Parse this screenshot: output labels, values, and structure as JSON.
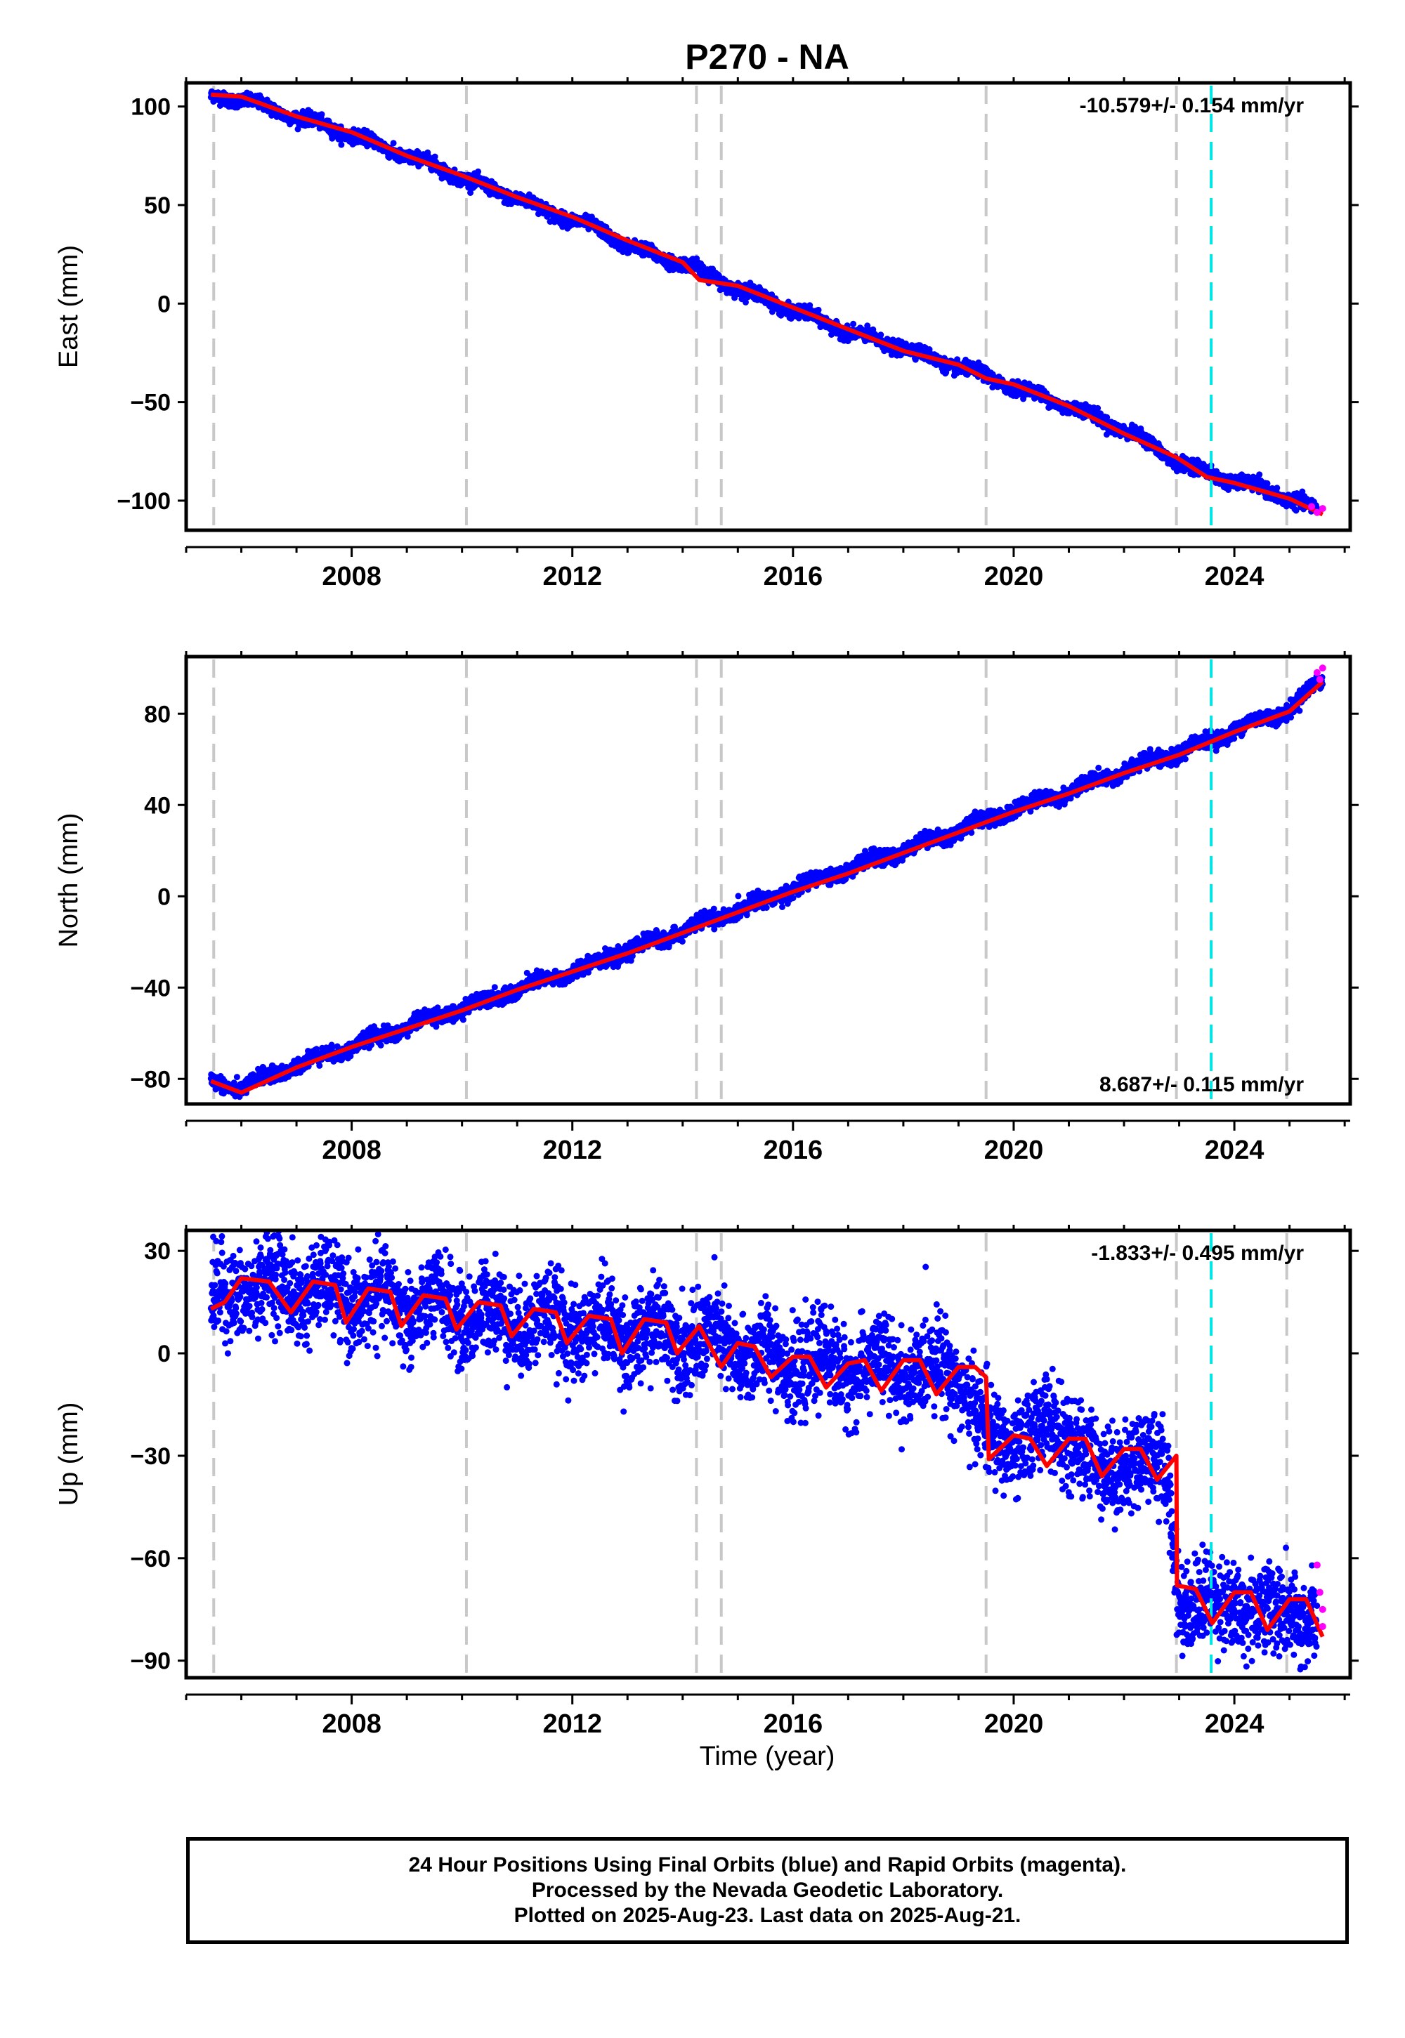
{
  "title": "P270 - NA",
  "colors": {
    "final_orbits": "#0000ff",
    "rapid_orbits": "#ff00ff",
    "model": "#ff0000",
    "event_line": "#c8c8c8",
    "highlight_line": "#00e5e5"
  },
  "xlabel": "Time (year)",
  "footer": {
    "line1": "24 Hour Positions Using Final Orbits (blue) and Rapid Orbits (magenta).",
    "line2": "Processed by the Nevada Geodetic Laboratory.",
    "line3": "Plotted on 2025-Aug-23. Last data on 2025-Aug-21."
  },
  "chart_data": [
    {
      "type": "scatter",
      "title": "P270 - NA",
      "ylabel": "East (mm)",
      "xlabel": "",
      "xlim": [
        2005.0,
        2026.1
      ],
      "xticks": [
        2008,
        2012,
        2016,
        2020,
        2024
      ],
      "ylim": [
        -115,
        112
      ],
      "yticks": [
        100,
        50,
        0,
        -50,
        -100
      ],
      "rate_label": "-10.579+/- 0.154 mm/yr",
      "rate_position": "top-right",
      "event_lines": [
        2005.5,
        2010.08,
        2014.25,
        2014.7,
        2019.5,
        2022.95,
        2024.95
      ],
      "highlight_lines": [
        2023.58
      ],
      "series": [
        {
          "x": [
            2005.45,
            2005.5,
            2006.0,
            2006.5,
            2007.0,
            2007.5,
            2008.0,
            2008.5,
            2009.0,
            2009.5,
            2010.0,
            2010.5,
            2011.0,
            2011.5,
            2012.0,
            2012.5,
            2013.0,
            2013.5,
            2014.0,
            2014.5,
            2015.0,
            2015.5,
            2016.0,
            2016.5,
            2017.0,
            2017.5,
            2018.0,
            2018.5,
            2019.0,
            2019.5,
            2020.0,
            2020.5,
            2021.0,
            2021.5,
            2022.0,
            2022.5,
            2022.95,
            2023.5,
            2024.0,
            2024.5,
            2025.0,
            2025.5
          ],
          "values": [
            104,
            105,
            104,
            99,
            95,
            90,
            86,
            80,
            75,
            70,
            64,
            58,
            54,
            47,
            43,
            37,
            30,
            24,
            21,
            14,
            8,
            2,
            -3,
            -9,
            -14,
            -19,
            -22,
            -28,
            -32,
            -37,
            -42,
            -47,
            -52,
            -58,
            -64,
            -72,
            -80,
            -86,
            -90,
            -94,
            -99,
            -105
          ]
        },
        {
          "name": "model",
          "x": [
            2005.45,
            2006.0,
            2007.0,
            2008.0,
            2009.0,
            2010.0,
            2011.0,
            2012.0,
            2013.0,
            2014.0,
            2014.3,
            2015.0,
            2016.0,
            2017.0,
            2018.0,
            2019.0,
            2019.5,
            2020.0,
            2021.0,
            2022.0,
            2022.95,
            2023.5,
            2024.0,
            2025.0,
            2025.6
          ],
          "values": [
            106,
            105,
            95,
            87,
            75,
            65,
            54,
            44,
            32,
            21,
            12,
            9,
            -2,
            -13,
            -24,
            -31,
            -38,
            -41,
            -52,
            -66,
            -78,
            -88,
            -91,
            -99,
            -107
          ]
        },
        {
          "name": "rapid",
          "x": [
            2025.4,
            2025.5,
            2025.6
          ],
          "values": [
            -103,
            -106,
            -104
          ]
        }
      ]
    },
    {
      "type": "scatter",
      "ylabel": "North (mm)",
      "xlabel": "",
      "xlim": [
        2005.0,
        2026.1
      ],
      "xticks": [
        2008,
        2012,
        2016,
        2020,
        2024
      ],
      "ylim": [
        -91,
        105
      ],
      "yticks": [
        80,
        40,
        0,
        -40,
        -80
      ],
      "rate_label": "8.687+/- 0.115 mm/yr",
      "rate_position": "bottom-right",
      "event_lines": [
        2005.5,
        2010.08,
        2014.25,
        2014.7,
        2019.5,
        2022.95,
        2024.95
      ],
      "highlight_lines": [
        2023.58
      ],
      "series": [
        {
          "x": [
            2005.45,
            2006.0,
            2007.0,
            2008.0,
            2009.0,
            2010.0,
            2011.0,
            2012.0,
            2013.0,
            2014.0,
            2015.0,
            2016.0,
            2017.0,
            2018.0,
            2019.0,
            2020.0,
            2021.0,
            2022.0,
            2023.0,
            2024.0,
            2025.0,
            2025.6
          ],
          "values": [
            -81,
            -84,
            -74,
            -66,
            -57,
            -49,
            -41,
            -33,
            -24,
            -15,
            -6,
            3,
            12,
            20,
            29,
            38,
            46,
            55,
            63,
            73,
            82,
            95
          ]
        },
        {
          "name": "model",
          "x": [
            2005.45,
            2006.0,
            2007.0,
            2008.0,
            2009.0,
            2010.0,
            2011.0,
            2012.0,
            2013.0,
            2014.0,
            2015.0,
            2016.0,
            2017.0,
            2018.0,
            2019.0,
            2020.0,
            2021.0,
            2022.0,
            2023.0,
            2024.0,
            2025.0,
            2025.6
          ],
          "values": [
            -81,
            -86,
            -75,
            -66,
            -58,
            -50,
            -41,
            -33,
            -25,
            -16,
            -7,
            2,
            10,
            19,
            28,
            37,
            45,
            54,
            62,
            72,
            81,
            94
          ]
        },
        {
          "name": "rapid",
          "x": [
            2025.5,
            2025.55,
            2025.6
          ],
          "values": [
            98,
            95,
            100
          ]
        }
      ]
    },
    {
      "type": "scatter",
      "ylabel": "Up (mm)",
      "xlabel": "Time (year)",
      "xlim": [
        2005.0,
        2026.1
      ],
      "xticks": [
        2008,
        2012,
        2016,
        2020,
        2024
      ],
      "ylim": [
        -95,
        36
      ],
      "yticks": [
        30,
        0,
        -30,
        -60,
        -90
      ],
      "rate_label": "-1.833+/- 0.495 mm/yr",
      "rate_position": "top-right",
      "event_lines": [
        2005.5,
        2010.08,
        2014.25,
        2014.7,
        2019.5,
        2022.95,
        2024.95
      ],
      "highlight_lines": [
        2023.58
      ],
      "series": [
        {
          "x": [
            2005.45,
            2006.0,
            2007.0,
            2008.0,
            2009.0,
            2010.0,
            2011.0,
            2012.0,
            2013.0,
            2014.0,
            2015.0,
            2016.0,
            2017.0,
            2018.0,
            2019.0,
            2019.6,
            2020.5,
            2021.2,
            2021.6,
            2022.2,
            2022.8,
            2023.0,
            2023.5,
            2024.0,
            2024.5,
            2025.0,
            2025.5
          ],
          "values": [
            12,
            20,
            19,
            16,
            14,
            12,
            10,
            8,
            6,
            5,
            1,
            -3,
            -4,
            -5,
            -5,
            -28,
            -22,
            -25,
            -38,
            -28,
            -38,
            -70,
            -75,
            -71,
            -78,
            -73,
            -82
          ]
        },
        {
          "name": "model",
          "x": [
            2005.45,
            2005.7,
            2006.0,
            2006.5,
            2006.9,
            2007.3,
            2007.7,
            2007.9,
            2008.3,
            2008.7,
            2008.9,
            2009.3,
            2009.7,
            2009.9,
            2010.3,
            2010.7,
            2010.9,
            2011.3,
            2011.7,
            2011.9,
            2012.3,
            2012.7,
            2012.9,
            2013.3,
            2013.7,
            2013.9,
            2014.3,
            2014.5,
            2014.7,
            2015.0,
            2015.3,
            2015.6,
            2016.0,
            2016.3,
            2016.6,
            2017.0,
            2017.3,
            2017.6,
            2018.0,
            2018.3,
            2018.6,
            2019.0,
            2019.3,
            2019.5,
            2019.55,
            2020.0,
            2020.3,
            2020.6,
            2021.0,
            2021.3,
            2021.6,
            2022.0,
            2022.3,
            2022.6,
            2022.95,
            2022.96,
            2023.3,
            2023.6,
            2024.0,
            2024.3,
            2024.6,
            2025.0,
            2025.3,
            2025.6
          ],
          "values": [
            13,
            15,
            22,
            21,
            12,
            21,
            20,
            9,
            19,
            18,
            8,
            17,
            16,
            7,
            15,
            14,
            5,
            13,
            12,
            3,
            11,
            10,
            0,
            10,
            9,
            0,
            8,
            2,
            -4,
            3,
            2,
            -7,
            -1,
            -1,
            -10,
            -3,
            -2,
            -11,
            -2,
            -2,
            -12,
            -4,
            -4,
            -7,
            -31,
            -24,
            -25,
            -33,
            -25,
            -25,
            -36,
            -28,
            -28,
            -37,
            -30,
            -68,
            -69,
            -79,
            -70,
            -70,
            -81,
            -72,
            -72,
            -83
          ]
        },
        {
          "name": "rapid",
          "x": [
            2025.5,
            2025.55,
            2025.6,
            2025.6
          ],
          "values": [
            -62,
            -70,
            -75,
            -80
          ]
        }
      ]
    }
  ]
}
